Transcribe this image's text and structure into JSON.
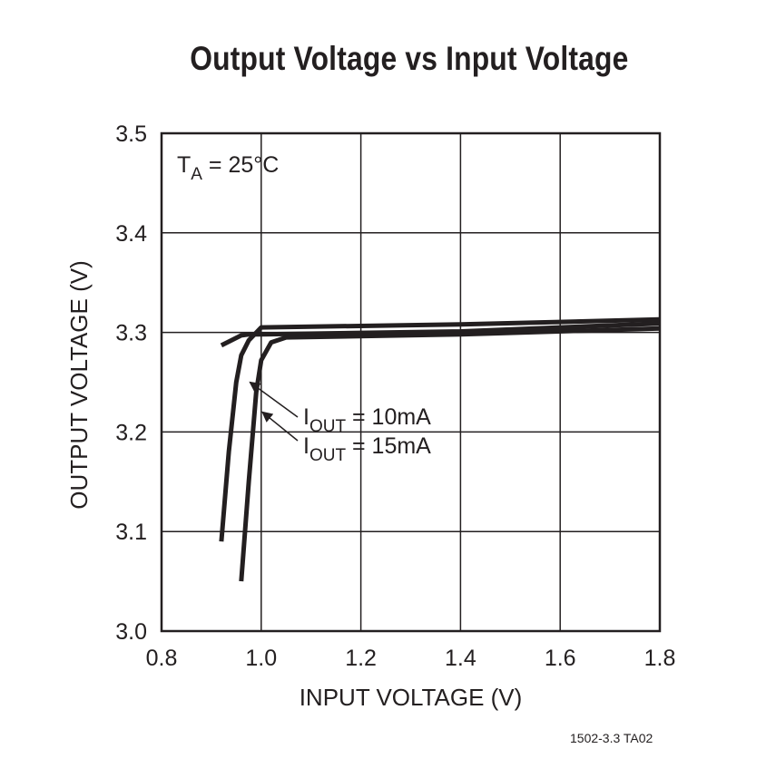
{
  "chart_data": {
    "type": "line",
    "title": "Output Voltage vs Input Voltage",
    "xlabel": "INPUT VOLTAGE (V)",
    "ylabel": "OUTPUT VOLTAGE (V)",
    "xlim": [
      0.8,
      1.8
    ],
    "ylim": [
      3.0,
      3.5
    ],
    "xticks": [
      "0.8",
      "1.0",
      "1.2",
      "1.4",
      "1.6",
      "1.8"
    ],
    "yticks": [
      "3.0",
      "3.1",
      "3.2",
      "3.3",
      "3.4",
      "3.5"
    ],
    "grid": true,
    "condition": {
      "main": "T",
      "sub": "A",
      "rest": " = 25°C"
    },
    "series": [
      {
        "name": "IOUT = 10mA",
        "x": [
          0.92,
          0.935,
          0.95,
          0.96,
          0.975,
          1.0,
          1.4,
          1.8
        ],
        "y": [
          3.09,
          3.18,
          3.25,
          3.277,
          3.292,
          3.305,
          3.308,
          3.313
        ]
      },
      {
        "name": "IOUT = 15mA",
        "x": [
          0.96,
          0.975,
          0.99,
          1.0,
          1.02,
          1.05,
          1.4,
          1.8
        ],
        "y": [
          3.05,
          3.15,
          3.24,
          3.272,
          3.29,
          3.295,
          3.298,
          3.304
        ]
      }
    ],
    "upper_line": {
      "x": [
        0.92,
        0.96,
        0.975,
        1.0,
        1.4,
        1.8
      ],
      "y": [
        3.287,
        3.297,
        3.298,
        3.298,
        3.301,
        3.309
      ]
    },
    "annotations": [
      {
        "main": "I",
        "sub": "OUT",
        "rest": " = 10mA",
        "points_to_series": 0,
        "arrow_at": {
          "x": 0.97,
          "y": 3.25
        }
      },
      {
        "main": "I",
        "sub": "OUT",
        "rest": " = 15mA",
        "points_to_series": 1,
        "arrow_at": {
          "x": 0.995,
          "y": 3.22
        }
      }
    ]
  },
  "figure_code": "1502-3.3 TA02"
}
